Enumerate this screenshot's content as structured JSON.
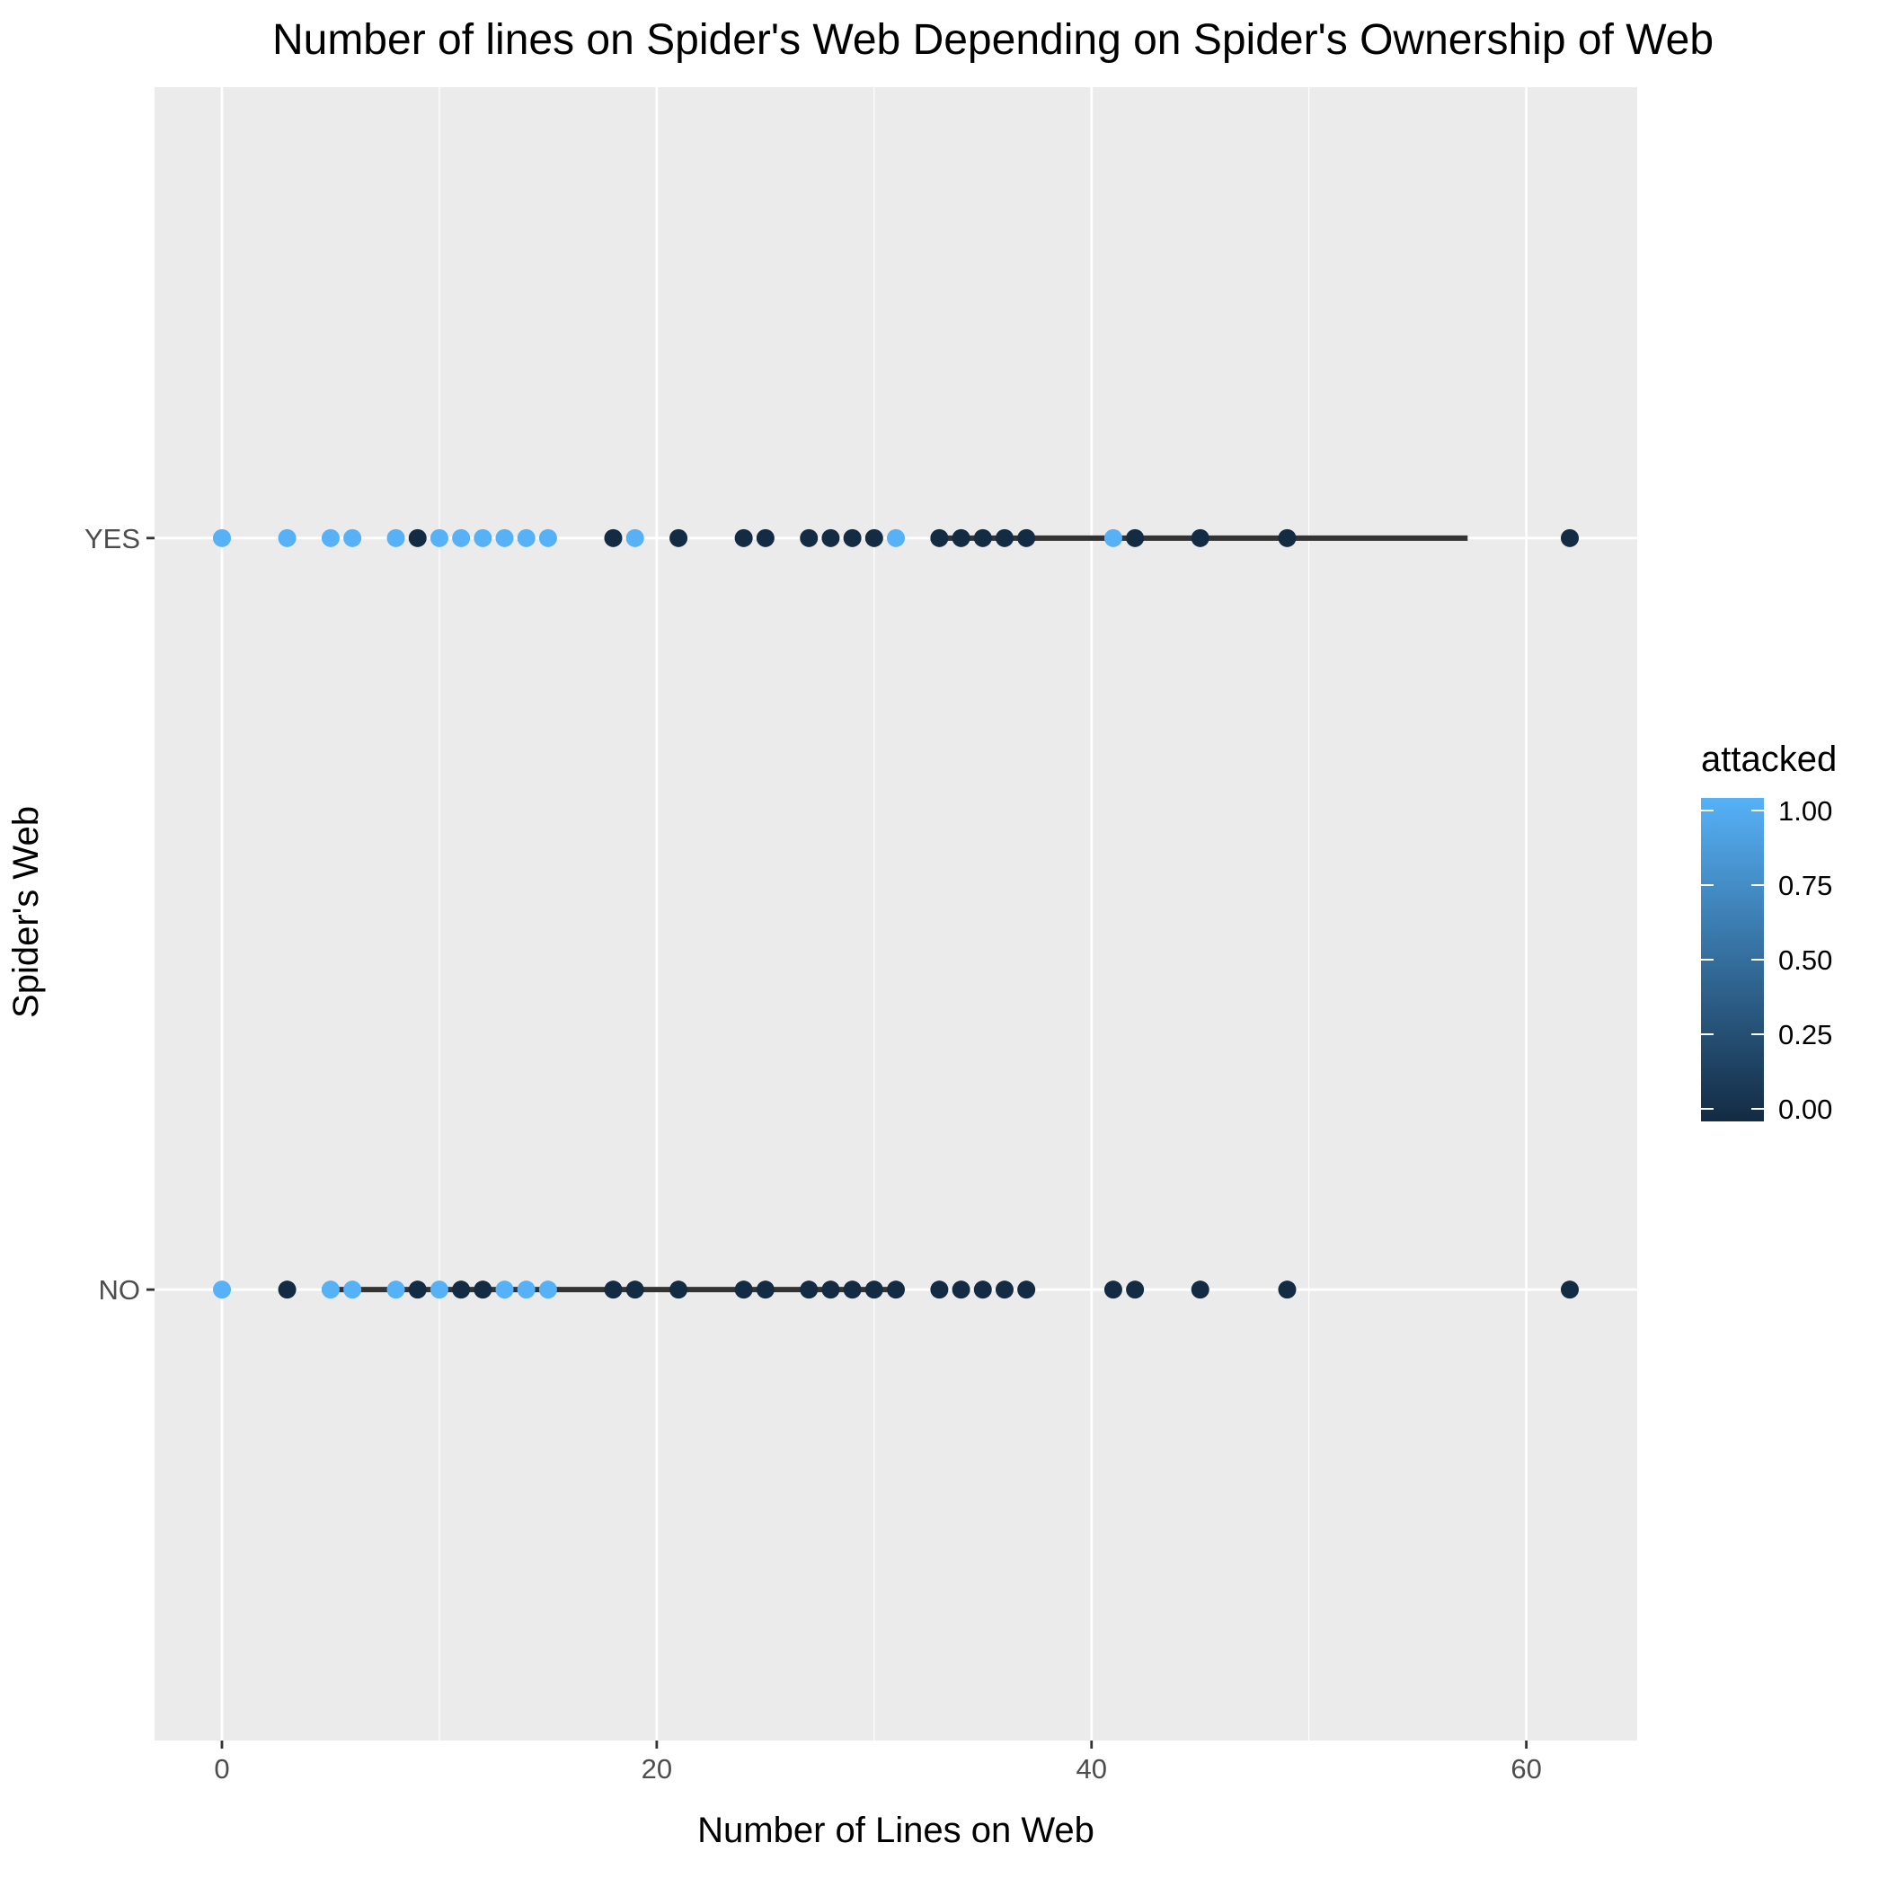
{
  "chart_data": {
    "type": "scatter",
    "title": "Number of lines on Spider's Web Depending on Spider's Ownership of Web",
    "xlabel": "Number of Lines on Web",
    "ylabel": "Spider's Web",
    "xlim": [
      -3.1,
      65.1
    ],
    "x_ticks": [
      0,
      20,
      40,
      60
    ],
    "y_categories": [
      "NO",
      "YES"
    ],
    "grid": true,
    "legend": {
      "title": "attacked",
      "placement": "right",
      "type": "colorbar",
      "low_color": "#132B43",
      "high_color": "#56B1F7",
      "range": [
        0,
        1
      ],
      "ticks": [
        "0.00",
        "0.25",
        "0.50",
        "0.75",
        "1.00"
      ]
    },
    "series": [
      {
        "category": "YES",
        "points": [
          {
            "x": 0,
            "attacked": 1
          },
          {
            "x": 3,
            "attacked": 1
          },
          {
            "x": 5,
            "attacked": 1
          },
          {
            "x": 6,
            "attacked": 1
          },
          {
            "x": 8,
            "attacked": 1
          },
          {
            "x": 9,
            "attacked": 0
          },
          {
            "x": 10,
            "attacked": 1
          },
          {
            "x": 11,
            "attacked": 1
          },
          {
            "x": 12,
            "attacked": 1
          },
          {
            "x": 13,
            "attacked": 1
          },
          {
            "x": 14,
            "attacked": 1
          },
          {
            "x": 15,
            "attacked": 1
          },
          {
            "x": 18,
            "attacked": 0
          },
          {
            "x": 19,
            "attacked": 1
          },
          {
            "x": 21,
            "attacked": 0
          },
          {
            "x": 24,
            "attacked": 0
          },
          {
            "x": 25,
            "attacked": 0
          },
          {
            "x": 27,
            "attacked": 0
          },
          {
            "x": 28,
            "attacked": 0
          },
          {
            "x": 29,
            "attacked": 0
          },
          {
            "x": 30,
            "attacked": 0
          },
          {
            "x": 31,
            "attacked": 1
          },
          {
            "x": 33,
            "attacked": 0
          },
          {
            "x": 34,
            "attacked": 0
          },
          {
            "x": 35,
            "attacked": 0
          },
          {
            "x": 36,
            "attacked": 0
          },
          {
            "x": 37,
            "attacked": 0
          },
          {
            "x": 41,
            "attacked": 1
          },
          {
            "x": 42,
            "attacked": 0
          },
          {
            "x": 45,
            "attacked": 0
          },
          {
            "x": 49,
            "attacked": 0
          },
          {
            "x": 62,
            "attacked": 0
          }
        ],
        "line_segment": [
          32.6,
          57.3
        ]
      },
      {
        "category": "NO",
        "points": [
          {
            "x": 0,
            "attacked": 1
          },
          {
            "x": 3,
            "attacked": 0
          },
          {
            "x": 5,
            "attacked": 1
          },
          {
            "x": 6,
            "attacked": 1
          },
          {
            "x": 8,
            "attacked": 1
          },
          {
            "x": 9,
            "attacked": 0
          },
          {
            "x": 10,
            "attacked": 1
          },
          {
            "x": 11,
            "attacked": 0
          },
          {
            "x": 12,
            "attacked": 0
          },
          {
            "x": 13,
            "attacked": 1
          },
          {
            "x": 14,
            "attacked": 1
          },
          {
            "x": 15,
            "attacked": 1
          },
          {
            "x": 18,
            "attacked": 0
          },
          {
            "x": 19,
            "attacked": 0
          },
          {
            "x": 21,
            "attacked": 0
          },
          {
            "x": 24,
            "attacked": 0
          },
          {
            "x": 25,
            "attacked": 0
          },
          {
            "x": 27,
            "attacked": 0
          },
          {
            "x": 28,
            "attacked": 0
          },
          {
            "x": 29,
            "attacked": 0
          },
          {
            "x": 30,
            "attacked": 0
          },
          {
            "x": 31,
            "attacked": 0
          },
          {
            "x": 33,
            "attacked": 0
          },
          {
            "x": 34,
            "attacked": 0
          },
          {
            "x": 35,
            "attacked": 0
          },
          {
            "x": 36,
            "attacked": 0
          },
          {
            "x": 37,
            "attacked": 0
          },
          {
            "x": 41,
            "attacked": 0
          },
          {
            "x": 42,
            "attacked": 0
          },
          {
            "x": 45,
            "attacked": 0
          },
          {
            "x": 49,
            "attacked": 0
          },
          {
            "x": 62,
            "attacked": 0
          }
        ],
        "line_segment": [
          4.6,
          30.7
        ]
      }
    ]
  }
}
